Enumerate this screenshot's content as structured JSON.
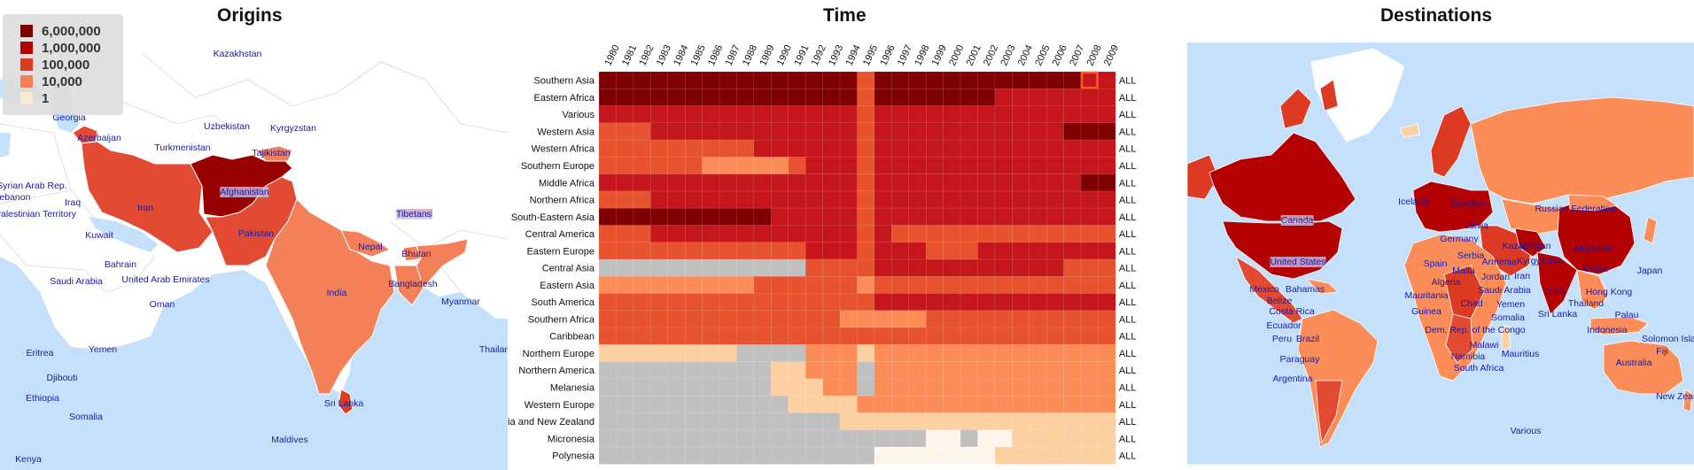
{
  "titles": {
    "origins": "Origins",
    "time": "Time",
    "destinations": "Destinations"
  },
  "colors": {
    "sea": "#c5e0fb",
    "land": "#ffffff",
    "no_data": "#c0c0c0",
    "scale": [
      "#fff5eb",
      "#fdd0a2",
      "#fc8d59",
      "#e34a33",
      "#b30000",
      "#7f0000"
    ],
    "selection": "#ff5a1f"
  },
  "legend": [
    {
      "label": "6,000,000",
      "color": "#7f0000"
    },
    {
      "label": "1,000,000",
      "color": "#b30000"
    },
    {
      "label": "100,000",
      "color": "#dc3a22"
    },
    {
      "label": "10,000",
      "color": "#f4805a"
    },
    {
      "label": "1",
      "color": "#fde8d2"
    }
  ],
  "origins_labels": [
    {
      "text": "Kazakhstan"
    },
    {
      "text": "Georgia"
    },
    {
      "text": "Uzbekistan"
    },
    {
      "text": "Kyrgyzstan"
    },
    {
      "text": "Azerbaijan"
    },
    {
      "text": "Turkmenistan"
    },
    {
      "text": "Tajikistan"
    },
    {
      "text": "Syrian Arab Rep."
    },
    {
      "text": "Lebanon"
    },
    {
      "text": "Iraq"
    },
    {
      "text": "Iran"
    },
    {
      "text": "Afghanistan"
    },
    {
      "text": "Palestinian Territory"
    },
    {
      "text": "Kuwait"
    },
    {
      "text": "Pakistan"
    },
    {
      "text": "Tibetans"
    },
    {
      "text": "Nepal"
    },
    {
      "text": "Bhutan"
    },
    {
      "text": "Bahrain"
    },
    {
      "text": "Saudi Arabia"
    },
    {
      "text": "United Arab Emirates"
    },
    {
      "text": "India"
    },
    {
      "text": "Bangladesh"
    },
    {
      "text": "Oman"
    },
    {
      "text": "Myanmar"
    },
    {
      "text": "Eritrea"
    },
    {
      "text": "Yemen"
    },
    {
      "text": "Thailand"
    },
    {
      "text": "Djibouti"
    },
    {
      "text": "Ethiopia"
    },
    {
      "text": "Somalia"
    },
    {
      "text": "Sri Lanka"
    },
    {
      "text": "Maldives"
    },
    {
      "text": "Kenya"
    }
  ],
  "destinations_labels": [
    {
      "text": "Iceland"
    },
    {
      "text": "Sweden"
    },
    {
      "text": "Russian Federation"
    },
    {
      "text": "Canada"
    },
    {
      "text": "Latvia"
    },
    {
      "text": "Germany"
    },
    {
      "text": "Kazakhstan"
    },
    {
      "text": "Mongolia"
    },
    {
      "text": "Serbia"
    },
    {
      "text": "Armenia"
    },
    {
      "text": "Kyrgyzstan"
    },
    {
      "text": "United States"
    },
    {
      "text": "Spain"
    },
    {
      "text": "Malta"
    },
    {
      "text": "Iran"
    },
    {
      "text": "China"
    },
    {
      "text": "Jordan"
    },
    {
      "text": "Japan"
    },
    {
      "text": "Algeria"
    },
    {
      "text": "Mexico"
    },
    {
      "text": "Bahamas"
    },
    {
      "text": "Saudi Arabia"
    },
    {
      "text": "India"
    },
    {
      "text": "Hong Kong"
    },
    {
      "text": "Belize"
    },
    {
      "text": "Mauritania"
    },
    {
      "text": "Chad"
    },
    {
      "text": "Yemen"
    },
    {
      "text": "Thailand"
    },
    {
      "text": "Costa Rica"
    },
    {
      "text": "Guinea"
    },
    {
      "text": "Sri Lanka"
    },
    {
      "text": "Palau"
    },
    {
      "text": "Somalia"
    },
    {
      "text": "Ecuador"
    },
    {
      "text": "Dem. Rep. of the Congo"
    },
    {
      "text": "Indonesia"
    },
    {
      "text": "Solomon Islands"
    },
    {
      "text": "Peru"
    },
    {
      "text": "Brazil"
    },
    {
      "text": "Malawi"
    },
    {
      "text": "Fiji"
    },
    {
      "text": "Namibia"
    },
    {
      "text": "Mauritius"
    },
    {
      "text": "Paraguay"
    },
    {
      "text": "South Africa"
    },
    {
      "text": "Australia"
    },
    {
      "text": "Argentina"
    },
    {
      "text": "New Zealand"
    },
    {
      "text": "Various"
    }
  ],
  "chart_data": {
    "type": "heatmap",
    "title": "Time",
    "x": [
      "1980",
      "1981",
      "1982",
      "1983",
      "1984",
      "1985",
      "1986",
      "1987",
      "1988",
      "1989",
      "1990",
      "1991",
      "1992",
      "1993",
      "1994",
      "1995",
      "1996",
      "1997",
      "1998",
      "1999",
      "2000",
      "2001",
      "2002",
      "2003",
      "2004",
      "2005",
      "2006",
      "2007",
      "2008",
      "2009"
    ],
    "y": [
      "Southern Asia",
      "Eastern Africa",
      "Various",
      "Western Asia",
      "Western Africa",
      "Southern Europe",
      "Middle Africa",
      "Northern Africa",
      "South-Eastern Asia",
      "Central America",
      "Eastern Europe",
      "Central Asia",
      "Eastern Asia",
      "South America",
      "Southern Africa",
      "Caribbean",
      "Northern Europe",
      "Northern America",
      "Melanesia",
      "Western Europe",
      "Australia and New Zealand",
      "Micronesia",
      "Polynesia"
    ],
    "row_total_label": "ALL",
    "scale_breaks": [
      1,
      10000,
      100000,
      1000000,
      6000000
    ],
    "note_levels": "values are approximate color levels 0-5; -1 = no data",
    "levels": [
      [
        5,
        5,
        5,
        5,
        5,
        5,
        5,
        5,
        5,
        5,
        5,
        5,
        5,
        5,
        5,
        3,
        5,
        5,
        5,
        5,
        5,
        5,
        5,
        5,
        5,
        5,
        5,
        5,
        4,
        4
      ],
      [
        5,
        5,
        5,
        5,
        5,
        5,
        5,
        5,
        5,
        5,
        5,
        5,
        5,
        5,
        5,
        3,
        5,
        5,
        5,
        5,
        5,
        5,
        5,
        4,
        4,
        4,
        4,
        4,
        4,
        4
      ],
      [
        4,
        4,
        4,
        4,
        4,
        4,
        4,
        4,
        4,
        4,
        4,
        4,
        4,
        4,
        4,
        3,
        4,
        4,
        4,
        4,
        4,
        4,
        4,
        4,
        4,
        4,
        4,
        4,
        4,
        4
      ],
      [
        3,
        3,
        3,
        4,
        4,
        4,
        4,
        4,
        4,
        4,
        4,
        4,
        4,
        4,
        4,
        3,
        4,
        4,
        4,
        4,
        4,
        4,
        4,
        4,
        4,
        4,
        4,
        5,
        5,
        5
      ],
      [
        3,
        3,
        3,
        3,
        3,
        3,
        3,
        3,
        3,
        4,
        4,
        4,
        4,
        4,
        4,
        3,
        4,
        4,
        4,
        4,
        4,
        4,
        4,
        4,
        4,
        4,
        4,
        4,
        4,
        4
      ],
      [
        3,
        3,
        3,
        3,
        3,
        3,
        2,
        2,
        2,
        2,
        2,
        3,
        4,
        4,
        4,
        3,
        4,
        4,
        4,
        4,
        4,
        4,
        4,
        4,
        4,
        4,
        4,
        4,
        4,
        4
      ],
      [
        4,
        4,
        4,
        4,
        4,
        4,
        4,
        4,
        4,
        4,
        4,
        4,
        4,
        4,
        4,
        3,
        4,
        4,
        4,
        4,
        4,
        4,
        4,
        4,
        4,
        4,
        4,
        4,
        5,
        5
      ],
      [
        3,
        3,
        3,
        4,
        4,
        4,
        4,
        4,
        4,
        4,
        4,
        4,
        4,
        4,
        4,
        3,
        4,
        4,
        4,
        4,
        4,
        4,
        4,
        4,
        4,
        4,
        4,
        4,
        4,
        4
      ],
      [
        5,
        5,
        5,
        5,
        5,
        5,
        5,
        5,
        5,
        5,
        4,
        4,
        4,
        4,
        4,
        3,
        4,
        4,
        4,
        4,
        4,
        4,
        4,
        4,
        4,
        4,
        4,
        4,
        4,
        4
      ],
      [
        3,
        3,
        3,
        4,
        4,
        4,
        4,
        4,
        4,
        4,
        4,
        4,
        4,
        4,
        4,
        3,
        4,
        3,
        3,
        3,
        3,
        3,
        3,
        3,
        3,
        3,
        3,
        3,
        3,
        3
      ],
      [
        3,
        3,
        3,
        3,
        3,
        3,
        3,
        3,
        3,
        3,
        3,
        3,
        4,
        4,
        4,
        3,
        4,
        4,
        4,
        3,
        3,
        3,
        4,
        4,
        4,
        4,
        4,
        4,
        4,
        4
      ],
      [
        -1,
        -1,
        -1,
        -1,
        -1,
        -1,
        -1,
        -1,
        -1,
        -1,
        -1,
        -1,
        3,
        3,
        3,
        3,
        4,
        4,
        4,
        4,
        4,
        4,
        4,
        4,
        4,
        4,
        4,
        3,
        3,
        3
      ],
      [
        2,
        2,
        2,
        2,
        2,
        2,
        2,
        2,
        2,
        3,
        3,
        3,
        3,
        3,
        3,
        2,
        3,
        3,
        3,
        3,
        3,
        3,
        3,
        3,
        3,
        3,
        3,
        3,
        3,
        3
      ],
      [
        3,
        3,
        3,
        3,
        3,
        3,
        3,
        3,
        3,
        3,
        3,
        3,
        3,
        3,
        3,
        3,
        4,
        4,
        4,
        4,
        4,
        4,
        4,
        4,
        4,
        4,
        4,
        4,
        4,
        4
      ],
      [
        3,
        3,
        3,
        3,
        3,
        3,
        3,
        3,
        3,
        3,
        3,
        3,
        3,
        3,
        2,
        2,
        2,
        2,
        2,
        3,
        3,
        3,
        3,
        3,
        3,
        3,
        3,
        3,
        3,
        3
      ],
      [
        3,
        3,
        3,
        3,
        3,
        3,
        3,
        3,
        3,
        3,
        3,
        3,
        3,
        3,
        3,
        3,
        3,
        3,
        3,
        3,
        3,
        3,
        3,
        3,
        3,
        3,
        3,
        3,
        3,
        3
      ],
      [
        1,
        1,
        1,
        1,
        1,
        1,
        1,
        1,
        -1,
        -1,
        -1,
        -1,
        2,
        2,
        2,
        1,
        2,
        2,
        2,
        2,
        2,
        2,
        2,
        2,
        2,
        2,
        2,
        2,
        2,
        2
      ],
      [
        -1,
        -1,
        -1,
        -1,
        -1,
        -1,
        -1,
        -1,
        -1,
        -1,
        1,
        1,
        2,
        2,
        2,
        -1,
        2,
        2,
        2,
        2,
        2,
        2,
        2,
        2,
        2,
        2,
        2,
        2,
        2,
        2
      ],
      [
        -1,
        -1,
        -1,
        -1,
        -1,
        -1,
        -1,
        -1,
        -1,
        -1,
        1,
        1,
        1,
        2,
        2,
        -1,
        2,
        2,
        2,
        2,
        2,
        2,
        2,
        2,
        2,
        2,
        2,
        2,
        2,
        2
      ],
      [
        -1,
        -1,
        -1,
        -1,
        -1,
        -1,
        -1,
        -1,
        -1,
        -1,
        -1,
        1,
        1,
        1,
        1,
        2,
        2,
        2,
        2,
        2,
        2,
        2,
        2,
        2,
        2,
        2,
        2,
        2,
        2,
        2
      ],
      [
        -1,
        -1,
        -1,
        -1,
        -1,
        -1,
        -1,
        -1,
        -1,
        -1,
        -1,
        -1,
        -1,
        -1,
        1,
        1,
        1,
        1,
        1,
        1,
        1,
        1,
        1,
        1,
        1,
        1,
        1,
        1,
        1,
        1
      ],
      [
        -1,
        -1,
        -1,
        -1,
        -1,
        -1,
        -1,
        -1,
        -1,
        -1,
        -1,
        -1,
        -1,
        -1,
        -1,
        -1,
        -1,
        -1,
        -1,
        0,
        0,
        -1,
        0,
        0,
        1,
        1,
        1,
        1,
        1,
        1
      ],
      [
        -1,
        -1,
        -1,
        -1,
        -1,
        -1,
        -1,
        -1,
        -1,
        -1,
        -1,
        -1,
        -1,
        -1,
        -1,
        -1,
        0,
        0,
        0,
        0,
        0,
        0,
        0,
        1,
        1,
        1,
        1,
        1,
        1,
        1
      ]
    ],
    "selected_cell": {
      "y": "Southern Asia",
      "x": "2008"
    }
  }
}
